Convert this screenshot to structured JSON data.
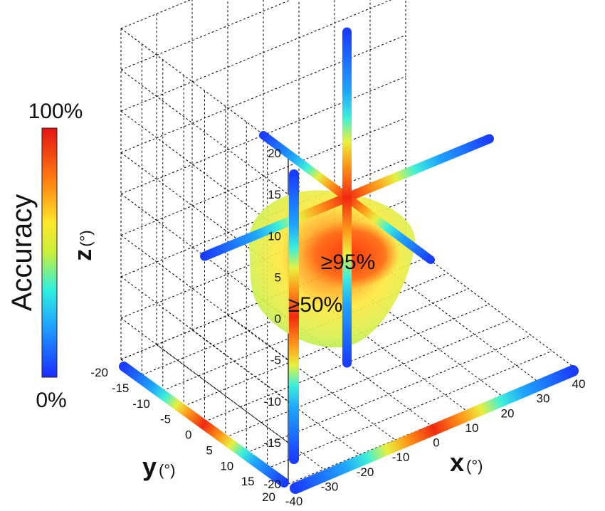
{
  "chart_data": {
    "type": "3d-scatter",
    "title": "",
    "colorbar": {
      "label": "Accuracy",
      "max_label": "100%",
      "min_label": "0%",
      "colormap": "jet"
    },
    "axes": {
      "x": {
        "label": "x",
        "unit": "(°)",
        "range": [
          -40,
          40
        ],
        "ticks": [
          -40,
          -30,
          -20,
          -10,
          0,
          10,
          20,
          30,
          40
        ]
      },
      "y": {
        "label": "y",
        "unit": "(°)",
        "range": [
          -20,
          20
        ],
        "ticks": [
          -20,
          -15,
          -10,
          -5,
          0,
          5,
          10,
          15,
          20
        ]
      },
      "z": {
        "label": "z",
        "unit": "(°)",
        "range": [
          -20,
          20
        ],
        "ticks": [
          -20,
          -15,
          -10,
          -5,
          0,
          5,
          10,
          15,
          20
        ]
      }
    },
    "grid": true,
    "regions": [
      {
        "label": "≥95%",
        "threshold_percent": 95
      },
      {
        "label": "≥50%",
        "threshold_percent": 50
      }
    ],
    "rods": [
      {
        "axis": "x",
        "range": [
          -40,
          40
        ]
      },
      {
        "axis": "y",
        "range": [
          -20,
          20
        ]
      },
      {
        "axis": "z",
        "range": [
          -20,
          20
        ]
      }
    ]
  },
  "colors": {
    "grid": "#000000",
    "text": "#111111"
  }
}
